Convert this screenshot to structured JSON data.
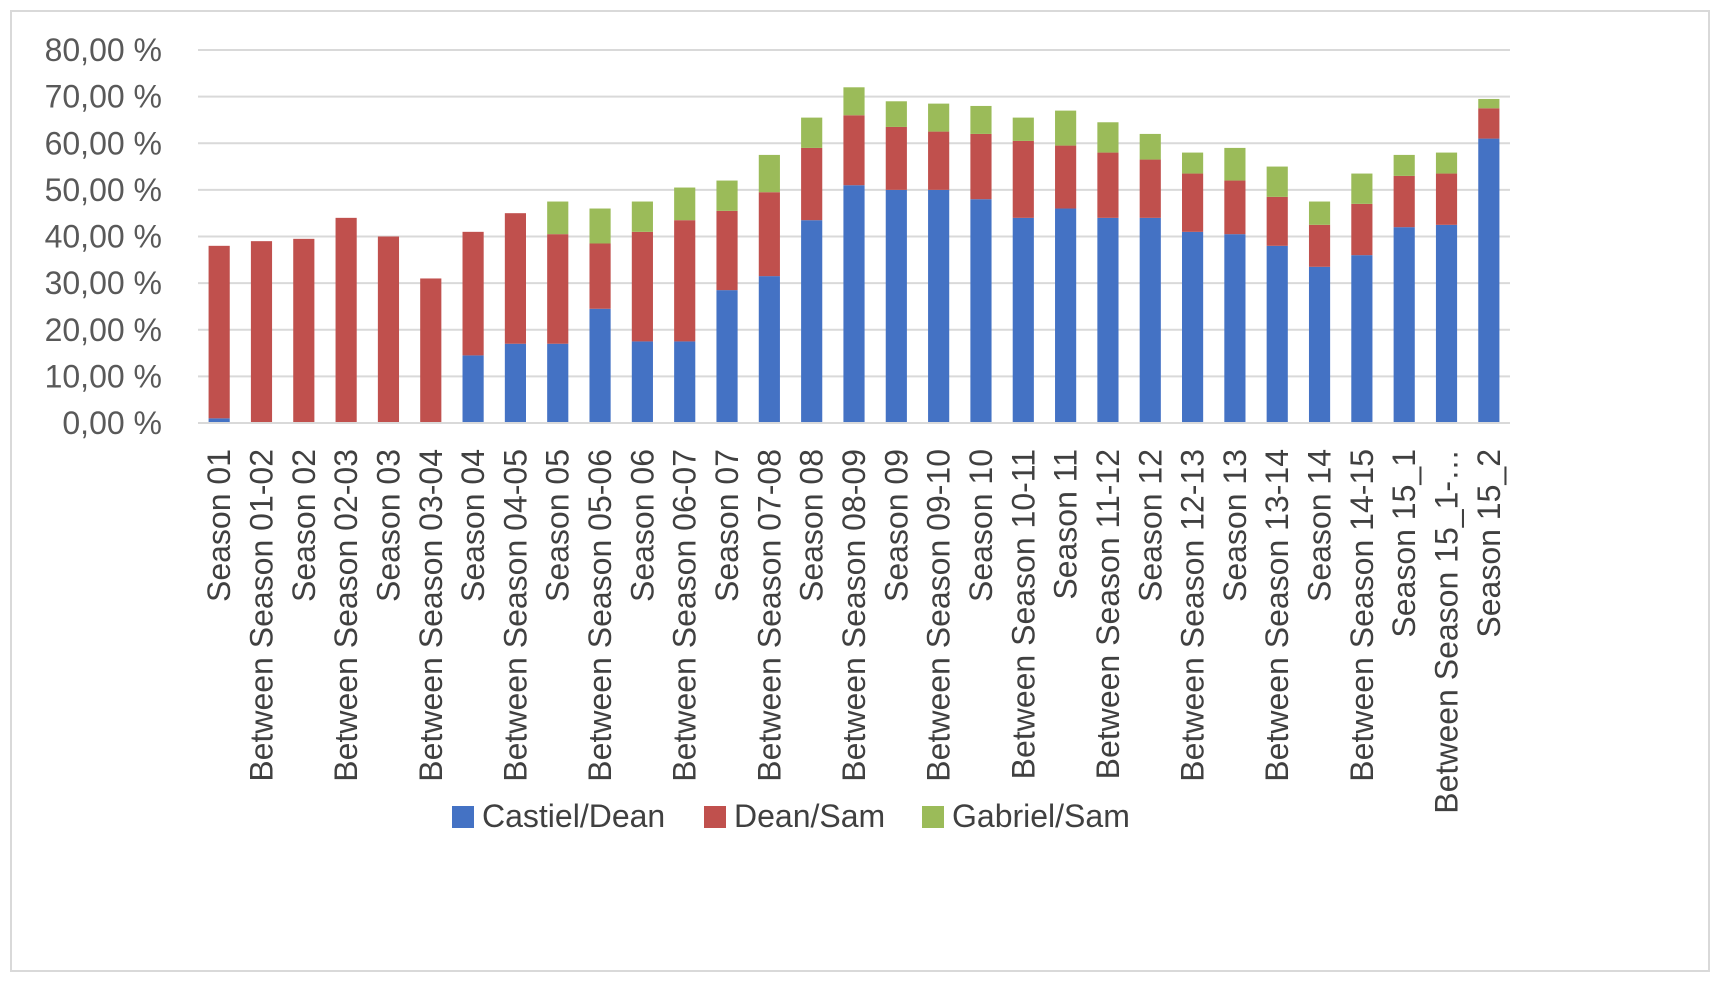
{
  "chart_data": {
    "type": "bar",
    "stacked": true,
    "categories": [
      "Season 01",
      "Between Season 01-02",
      "Season 02",
      "Between Season 02-03",
      "Season 03",
      "Between Season 03-04",
      "Season 04",
      "Between Season 04-05",
      "Season 05",
      "Between Season 05-06",
      "Season 06",
      "Between Season 06-07",
      "Season 07",
      "Between Season 07-08",
      "Season 08",
      "Between Season 08-09",
      "Season 09",
      "Between Season 09-10",
      "Season 10",
      "Between Season 10-11",
      "Season 11",
      "Between Season 11-12",
      "Season 12",
      "Between Season 12-13",
      "Season 13",
      "Between Season 13-14",
      "Season 14",
      "Between Season 14-15",
      "Season 15_1",
      "Between Season 15_1-…",
      "Season 15_2"
    ],
    "series": [
      {
        "name": "Castiel/Dean",
        "color": "#4472c4",
        "values": [
          1,
          0,
          0,
          0,
          0,
          0,
          14.5,
          17,
          17,
          24.5,
          17.5,
          17.5,
          28.5,
          31.5,
          43.5,
          51,
          50,
          50,
          48,
          44,
          46,
          44,
          44,
          41,
          40.5,
          38,
          33.5,
          36,
          42,
          42.5,
          61
        ]
      },
      {
        "name": "Dean/Sam",
        "color": "#c0504d",
        "values": [
          37,
          39,
          39.5,
          44,
          40,
          31,
          26.5,
          28,
          23.5,
          14,
          23.5,
          26,
          17,
          18,
          15.5,
          15,
          13.5,
          12.5,
          14,
          16.5,
          13.5,
          14,
          12.5,
          12.5,
          11.5,
          10.5,
          9,
          11,
          11,
          11,
          6.5
        ]
      },
      {
        "name": "Gabriel/Sam",
        "color": "#9bbb59",
        "values": [
          0,
          0,
          0,
          0,
          0,
          0,
          0,
          0,
          7,
          7.5,
          6.5,
          7,
          6.5,
          8,
          6.5,
          6,
          5.5,
          6,
          6,
          5,
          7.5,
          6.5,
          5.5,
          4.5,
          7,
          6.5,
          5,
          6.5,
          4.5,
          4.5,
          2
        ]
      }
    ],
    "yticks": [
      "0,00 %",
      "10,00 %",
      "20,00 %",
      "30,00 %",
      "40,00 %",
      "50,00 %",
      "60,00 %",
      "70,00 %",
      "80,00 %"
    ],
    "ylim": [
      0,
      80
    ],
    "title": "",
    "xlabel": "",
    "ylabel": "",
    "grid": true,
    "legend_position": "bottom"
  }
}
